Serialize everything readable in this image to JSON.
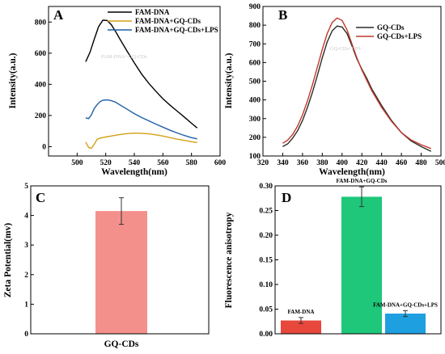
{
  "figure": {
    "ghost_text": [
      "FAM-DNA+GQ-CDs",
      "GQ-CDs+LPS"
    ]
  },
  "chart_data": [
    {
      "panel": "A",
      "type": "line",
      "xlabel": "Wavelength(nm)",
      "ylabel": "Intensity(a.u.)",
      "xlim": [
        480,
        600
      ],
      "ylim": [
        -60,
        900
      ],
      "xticks": [
        500,
        520,
        540,
        560,
        580,
        600
      ],
      "yticks": [
        0,
        200,
        400,
        600,
        800
      ],
      "legend_position": "top-right",
      "series": [
        {
          "name": "FAM-DNA",
          "color": "#000000",
          "x": [
            506,
            509,
            512,
            515,
            518,
            521,
            524,
            527,
            530,
            535,
            540,
            545,
            550,
            555,
            560,
            565,
            570,
            575,
            580,
            584
          ],
          "y": [
            545,
            605,
            690,
            770,
            812,
            810,
            782,
            738,
            690,
            612,
            538,
            468,
            408,
            356,
            308,
            266,
            228,
            190,
            150,
            120
          ]
        },
        {
          "name": "FAM-DNA+GQ-CDs",
          "color": "#d4a017",
          "x": [
            506,
            508,
            510,
            512,
            514,
            516,
            520,
            525,
            530,
            535,
            540,
            545,
            550,
            555,
            560,
            565,
            570,
            575,
            580,
            584
          ],
          "y": [
            30,
            -5,
            -10,
            15,
            48,
            55,
            62,
            70,
            78,
            84,
            87,
            86,
            82,
            76,
            68,
            58,
            48,
            40,
            32,
            26
          ]
        },
        {
          "name": "FAM-DNA+GQ-CDs+LPS",
          "color": "#1f5fa8",
          "x": [
            506,
            508,
            510,
            512,
            514,
            516,
            518,
            521,
            524,
            527,
            530,
            535,
            540,
            545,
            550,
            555,
            560,
            565,
            570,
            575,
            580,
            584
          ],
          "y": [
            185,
            180,
            205,
            245,
            270,
            288,
            298,
            300,
            295,
            285,
            268,
            240,
            212,
            188,
            166,
            145,
            125,
            105,
            88,
            72,
            58,
            50
          ]
        }
      ]
    },
    {
      "panel": "B",
      "type": "line",
      "xlabel": "Wavelength(nm)",
      "ylabel": "Intensity(a.u.)",
      "xlim": [
        320,
        500
      ],
      "ylim": [
        100,
        900
      ],
      "xticks": [
        320,
        340,
        360,
        380,
        400,
        420,
        440,
        460,
        480,
        500
      ],
      "yticks": [
        100,
        200,
        300,
        400,
        500,
        600,
        700,
        800,
        900
      ],
      "legend_position": "top-right",
      "series": [
        {
          "name": "GQ-CDs",
          "color": "#2b2b2b",
          "x": [
            340,
            345,
            350,
            355,
            360,
            365,
            370,
            375,
            380,
            385,
            390,
            395,
            400,
            405,
            410,
            415,
            420,
            425,
            430,
            440,
            450,
            460,
            470,
            480,
            490
          ],
          "y": [
            150,
            165,
            195,
            235,
            290,
            360,
            440,
            530,
            625,
            710,
            770,
            795,
            790,
            755,
            690,
            620,
            565,
            515,
            460,
            370,
            290,
            225,
            180,
            150,
            125
          ]
        },
        {
          "name": "GQ-CDs+LPS",
          "color": "#c0392b",
          "x": [
            340,
            345,
            350,
            355,
            360,
            365,
            370,
            375,
            380,
            385,
            390,
            395,
            400,
            405,
            410,
            415,
            420,
            425,
            430,
            440,
            450,
            460,
            470,
            480,
            490
          ],
          "y": [
            168,
            185,
            215,
            260,
            320,
            395,
            480,
            575,
            670,
            755,
            815,
            838,
            825,
            775,
            700,
            625,
            560,
            505,
            450,
            360,
            285,
            225,
            185,
            160,
            140
          ]
        }
      ]
    },
    {
      "panel": "C",
      "type": "bar",
      "ylabel": "Zeta Potential(mv)",
      "ylim": [
        0,
        5
      ],
      "yticks": [
        0,
        1,
        2,
        3,
        4,
        5
      ],
      "categories": [
        "GQ-CDs"
      ],
      "values": [
        4.15
      ],
      "errors": [
        0.45
      ],
      "colors": [
        "#f4908c"
      ]
    },
    {
      "panel": "D",
      "type": "bar",
      "ylabel": "Fluorescence anisotropy",
      "ylim": [
        0,
        0.3
      ],
      "yticks": [
        0.0,
        0.05,
        0.1,
        0.15,
        0.2,
        0.25,
        0.3
      ],
      "ytick_labels": [
        "0.00",
        "0.05",
        "0.10",
        "0.15",
        "0.20",
        "0.25",
        "0.30"
      ],
      "categories": [
        "FAM-DNA",
        "FAM-DNA+GQ-CDs",
        "FAM-DNA+GQ-CDs+LPS"
      ],
      "values": [
        0.027,
        0.278,
        0.041
      ],
      "errors": [
        0.006,
        0.02,
        0.006
      ],
      "colors": [
        "#e8473c",
        "#1ec77a",
        "#1e9fe0"
      ]
    }
  ]
}
